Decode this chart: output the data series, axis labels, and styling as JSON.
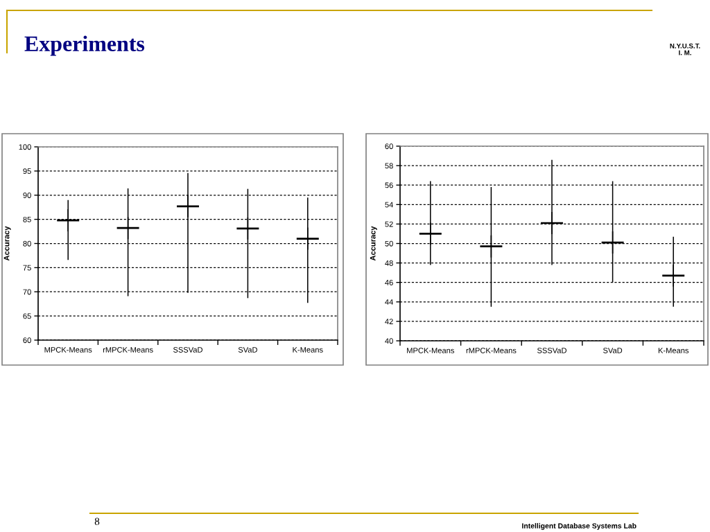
{
  "chart_data": [
    {
      "type": "scatter",
      "title": "Experiments",
      "ylabel": "Accuracy",
      "categories": [
        "MPCK-Means",
        "rMPCK-Means",
        "SSSVaD",
        "SVaD",
        "K-Means"
      ],
      "series": [
        {
          "color": "#000000",
          "values": [
            84.8,
            83.2,
            87.7,
            83.1,
            81.0
          ],
          "errors": [
            [
              76.6,
              89.0
            ],
            [
              69.1,
              91.4
            ],
            [
              69.8,
              94.6
            ],
            [
              68.7,
              91.3
            ],
            [
              67.7,
              89.5
            ]
          ]
        }
      ],
      "ylim": [
        60,
        100
      ],
      "yticks": [
        60,
        65,
        70,
        75,
        80,
        85,
        90,
        95,
        100
      ],
      "grid": "y",
      "marker": "cross",
      "annotations": [
        "N.Y.U.S.T.\nI. M.",
        "8",
        "Intelligent Database Systems Lab"
      ]
    },
    {
      "type": "scatter",
      "ylabel": "Accuracy",
      "categories": [
        "MPCK-Means",
        "rMPCK-Means",
        "SSSVaD",
        "SVaD",
        "K-Means"
      ],
      "series": [
        {
          "color": "#000000",
          "values": [
            51.0,
            49.7,
            52.1,
            50.1,
            46.7
          ],
          "errors": [
            [
              47.8,
              56.4
            ],
            [
              43.5,
              55.8
            ],
            [
              47.8,
              58.6
            ],
            [
              46.0,
              56.4
            ],
            [
              43.5,
              50.7
            ]
          ]
        }
      ],
      "ylim": [
        40,
        60
      ],
      "yticks": [
        40,
        42,
        44,
        46,
        48,
        50,
        52,
        54,
        56,
        58,
        60
      ],
      "grid": "y",
      "marker": "cross"
    }
  ]
}
